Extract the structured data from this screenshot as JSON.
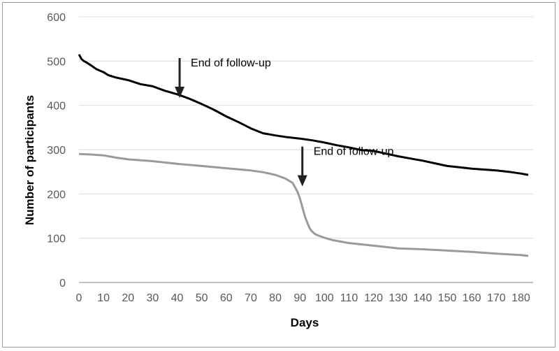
{
  "chart_data": {
    "type": "line",
    "title": "",
    "xlabel": "Days",
    "ylabel": "Number of participants",
    "xlim": [
      0,
      185
    ],
    "ylim": [
      0,
      600
    ],
    "x_ticks": [
      0,
      10,
      20,
      30,
      40,
      50,
      60,
      70,
      80,
      90,
      100,
      110,
      120,
      130,
      140,
      150,
      160,
      170,
      180
    ],
    "y_ticks": [
      0,
      100,
      200,
      300,
      400,
      500,
      600
    ],
    "grid": "horizontal",
    "legend": "none",
    "series": [
      {
        "color": "#000000",
        "x": [
          0,
          1,
          2,
          3,
          5,
          7,
          10,
          12,
          15,
          20,
          25,
          30,
          35,
          40,
          45,
          50,
          55,
          60,
          65,
          70,
          75,
          80,
          85,
          90,
          95,
          100,
          105,
          110,
          115,
          120,
          125,
          130,
          135,
          140,
          145,
          150,
          155,
          160,
          165,
          170,
          175,
          180,
          183
        ],
        "values": [
          515,
          505,
          500,
          497,
          490,
          482,
          475,
          468,
          463,
          457,
          448,
          443,
          433,
          425,
          415,
          403,
          390,
          375,
          362,
          348,
          337,
          332,
          328,
          325,
          321,
          316,
          310,
          305,
          299,
          297,
          291,
          285,
          280,
          275,
          269,
          263,
          260,
          257,
          255,
          253,
          250,
          246,
          243
        ]
      },
      {
        "color": "#9a9a9a",
        "x": [
          0,
          5,
          10,
          15,
          20,
          30,
          40,
          50,
          60,
          70,
          75,
          80,
          84,
          87,
          89,
          90,
          91,
          92,
          93,
          94,
          95,
          96,
          97,
          98,
          100,
          103,
          106,
          110,
          115,
          120,
          125,
          130,
          140,
          150,
          160,
          170,
          180,
          183
        ],
        "values": [
          290,
          289,
          287,
          282,
          278,
          274,
          268,
          263,
          258,
          253,
          249,
          243,
          235,
          225,
          205,
          190,
          170,
          150,
          135,
          122,
          115,
          110,
          107,
          105,
          101,
          96,
          93,
          89,
          86,
          83,
          80,
          77,
          75,
          72,
          69,
          65,
          62,
          60
        ]
      }
    ],
    "annotations": [
      {
        "text": "End of follow-up",
        "x": 41,
        "y": 420
      },
      {
        "text": "End of follow-up",
        "x": 91,
        "y": 220
      }
    ]
  }
}
